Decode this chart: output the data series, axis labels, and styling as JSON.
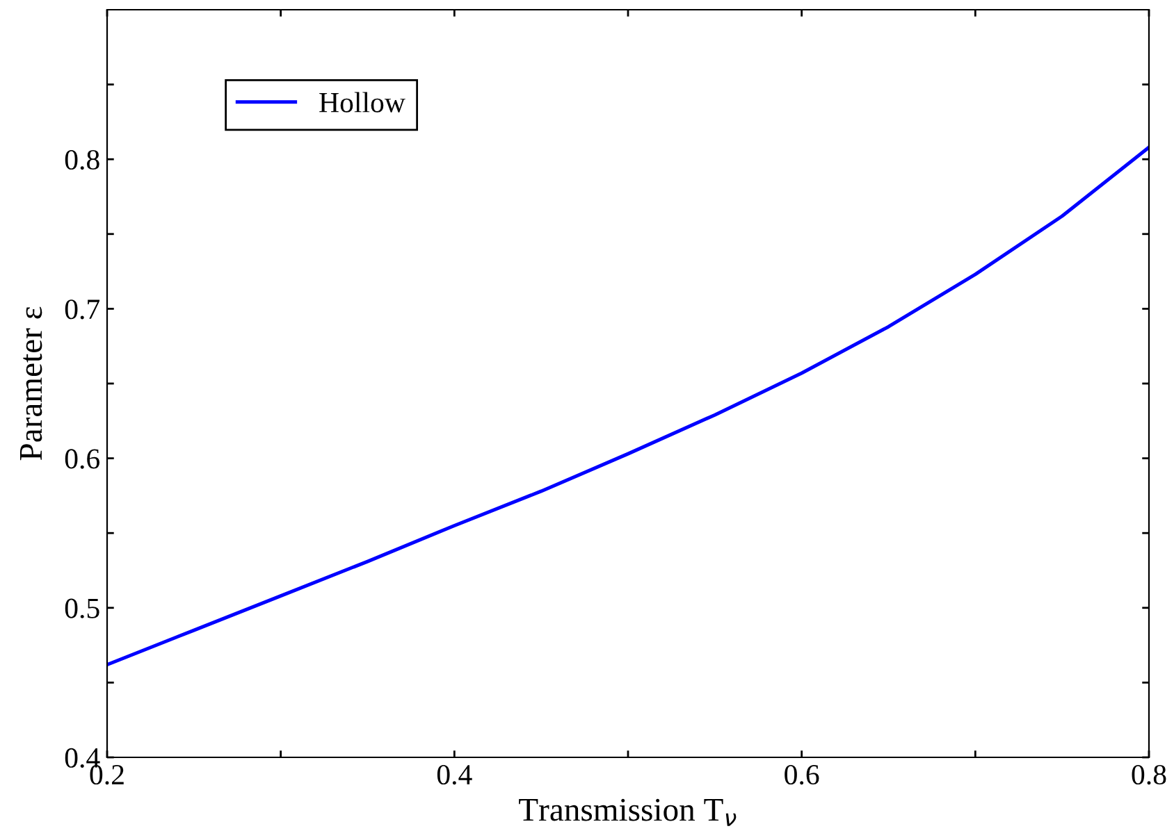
{
  "chart_data": {
    "type": "line",
    "xlabel": "Transmission T$_{ν}$",
    "ylabel": "Parameter ε",
    "x": [
      0.2,
      0.25,
      0.3,
      0.35,
      0.4,
      0.45,
      0.5,
      0.55,
      0.6,
      0.65,
      0.7,
      0.75,
      0.8
    ],
    "series": [
      {
        "name": "Hollow",
        "color": "#0000ff",
        "values": [
          0.462,
          0.485,
          0.508,
          0.531,
          0.555,
          0.578,
          0.603,
          0.629,
          0.657,
          0.688,
          0.723,
          0.762,
          0.808
        ]
      }
    ],
    "xlim": [
      0.2,
      0.8
    ],
    "ylim": [
      0.4,
      0.9
    ],
    "xticks": [
      0.2,
      {
        "value": 0.3,
        "label": null
      },
      0.4,
      {
        "value": 0.5,
        "label": null
      },
      0.6,
      {
        "value": 0.7,
        "label": null
      },
      0.8
    ],
    "yticks": [
      0.4,
      {
        "value": 0.45,
        "label": null
      },
      0.5,
      {
        "value": 0.55,
        "label": null
      },
      0.6,
      {
        "value": 0.65,
        "label": null
      },
      0.7,
      {
        "value": 0.75,
        "label": null
      },
      0.8,
      {
        "value": 0.85,
        "label": null
      }
    ],
    "grid": false,
    "legend": "top left",
    "marker": "none",
    "line_style": "solid"
  }
}
